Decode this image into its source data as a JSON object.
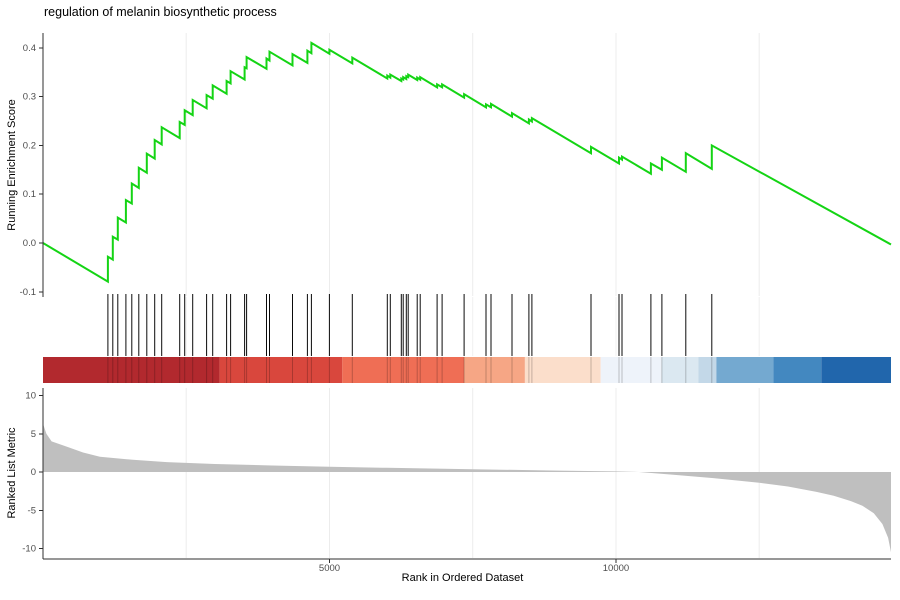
{
  "title": "regulation of melanin biosynthetic process",
  "chart_data": [
    {
      "type": "line",
      "name": "running-enrichment-score",
      "title": "regulation of melanin biosynthetic process",
      "ylabel": "Running Enrichment Score",
      "ylim": [
        -0.115,
        0.43
      ],
      "line_color": "#14d414",
      "grid": true,
      "yticks": [
        {
          "v": 0.4,
          "label": "0.4"
        },
        {
          "v": 0.3,
          "label": "0.3"
        },
        {
          "v": 0.2,
          "label": "0.2"
        },
        {
          "v": 0.1,
          "label": "0.1"
        },
        {
          "v": 0.0,
          "label": "0.0"
        },
        {
          "v": -0.1,
          "label": "-0.1"
        }
      ],
      "points": [
        [
          0,
          0
        ],
        [
          1132,
          -0.079
        ],
        [
          1132,
          -0.028
        ],
        [
          1219,
          -0.034
        ],
        [
          1219,
          0.013
        ],
        [
          1306,
          0.007
        ],
        [
          1306,
          0.052
        ],
        [
          1446,
          0.042
        ],
        [
          1446,
          0.088
        ],
        [
          1550,
          0.081
        ],
        [
          1550,
          0.122
        ],
        [
          1672,
          0.113
        ],
        [
          1672,
          0.154
        ],
        [
          1811,
          0.144
        ],
        [
          1811,
          0.183
        ],
        [
          1950,
          0.173
        ],
        [
          1950,
          0.211
        ],
        [
          2072,
          0.202
        ],
        [
          2072,
          0.237
        ],
        [
          2386,
          0.215
        ],
        [
          2386,
          0.248
        ],
        [
          2473,
          0.242
        ],
        [
          2473,
          0.272
        ],
        [
          2612,
          0.262
        ],
        [
          2612,
          0.293
        ],
        [
          2856,
          0.276
        ],
        [
          2856,
          0.303
        ],
        [
          2961,
          0.296
        ],
        [
          2961,
          0.323
        ],
        [
          3205,
          0.306
        ],
        [
          3205,
          0.332
        ],
        [
          3274,
          0.327
        ],
        [
          3274,
          0.352
        ],
        [
          3518,
          0.335
        ],
        [
          3518,
          0.36
        ],
        [
          3553,
          0.358
        ],
        [
          3553,
          0.381
        ],
        [
          3901,
          0.357
        ],
        [
          3901,
          0.378
        ],
        [
          3953,
          0.374
        ],
        [
          3953,
          0.392
        ],
        [
          4354,
          0.364
        ],
        [
          4354,
          0.387
        ],
        [
          4615,
          0.369
        ],
        [
          4615,
          0.394
        ],
        [
          4685,
          0.389
        ],
        [
          4685,
          0.41
        ],
        [
          4998,
          0.388
        ],
        [
          4998,
          0.396
        ],
        [
          5399,
          0.368
        ],
        [
          5399,
          0.38
        ],
        [
          6009,
          0.337
        ],
        [
          6009,
          0.343
        ],
        [
          6061,
          0.339
        ],
        [
          6061,
          0.345
        ],
        [
          6253,
          0.332
        ],
        [
          6253,
          0.337
        ],
        [
          6287,
          0.335
        ],
        [
          6287,
          0.34
        ],
        [
          6340,
          0.336
        ],
        [
          6340,
          0.342
        ],
        [
          6374,
          0.34
        ],
        [
          6374,
          0.345
        ],
        [
          6531,
          0.334
        ],
        [
          6531,
          0.339
        ],
        [
          6583,
          0.335
        ],
        [
          6583,
          0.34
        ],
        [
          6879,
          0.319
        ],
        [
          6879,
          0.325
        ],
        [
          6966,
          0.319
        ],
        [
          6966,
          0.325
        ],
        [
          7349,
          0.298
        ],
        [
          7349,
          0.305
        ],
        [
          7732,
          0.278
        ],
        [
          7732,
          0.284
        ],
        [
          7819,
          0.278
        ],
        [
          7819,
          0.285
        ],
        [
          8185,
          0.259
        ],
        [
          8185,
          0.266
        ],
        [
          8481,
          0.245
        ],
        [
          8481,
          0.253
        ],
        [
          8533,
          0.249
        ],
        [
          8533,
          0.256
        ],
        [
          9564,
          0.184
        ],
        [
          9564,
          0.197
        ],
        [
          10052,
          0.163
        ],
        [
          10052,
          0.175
        ],
        [
          10105,
          0.171
        ],
        [
          10105,
          0.177
        ],
        [
          10610,
          0.142
        ],
        [
          10610,
          0.163
        ],
        [
          10801,
          0.15
        ],
        [
          10801,
          0.175
        ],
        [
          11219,
          0.146
        ],
        [
          11219,
          0.184
        ],
        [
          11672,
          0.152
        ],
        [
          11672,
          0.2
        ],
        [
          14800,
          -0.003
        ]
      ],
      "hit_ranks": [
        1132,
        1219,
        1306,
        1446,
        1550,
        1672,
        1811,
        1950,
        2072,
        2386,
        2473,
        2612,
        2856,
        2961,
        3205,
        3274,
        3518,
        3553,
        3901,
        3953,
        4354,
        4615,
        4685,
        4998,
        5399,
        6009,
        6061,
        6253,
        6287,
        6340,
        6374,
        6531,
        6583,
        6879,
        6966,
        7349,
        7732,
        7819,
        8185,
        8481,
        8533,
        9564,
        10052,
        10105,
        10610,
        10801,
        11219,
        11672
      ]
    },
    {
      "type": "heatmap",
      "name": "rank-color-band",
      "segments": [
        {
          "from": 0,
          "to": 3082,
          "color": "#b2292e"
        },
        {
          "from": 3082,
          "to": 5224,
          "color": "#d9473d"
        },
        {
          "from": 5224,
          "to": 7348,
          "color": "#ef6e55"
        },
        {
          "from": 7348,
          "to": 8411,
          "color": "#f6a685"
        },
        {
          "from": 8411,
          "to": 9734,
          "color": "#fbdecb"
        },
        {
          "from": 9734,
          "to": 10796,
          "color": "#eef3fa"
        },
        {
          "from": 10796,
          "to": 11440,
          "color": "#dbe8f1"
        },
        {
          "from": 11440,
          "to": 11753,
          "color": "#c3d8e8"
        },
        {
          "from": 11753,
          "to": 12746,
          "color": "#74a9d0"
        },
        {
          "from": 12746,
          "to": 13581,
          "color": "#4388c0"
        },
        {
          "from": 13581,
          "to": 14800,
          "color": "#2166ac"
        }
      ]
    },
    {
      "type": "area",
      "name": "ranked-list-metric",
      "ylabel": "Ranked List Metric",
      "xlabel": "Rank in Ordered Dataset",
      "fill_color": "#bfbfbf",
      "xlim": [
        0,
        14800
      ],
      "ylim": [
        -11.4,
        11.0
      ],
      "yticks": [
        {
          "v": 10,
          "label": "10"
        },
        {
          "v": 5,
          "label": "5"
        },
        {
          "v": 0,
          "label": "0"
        },
        {
          "v": -5,
          "label": "-5"
        },
        {
          "v": -10,
          "label": "-10"
        }
      ],
      "xticks": [
        {
          "v": 5000,
          "label": "5000"
        },
        {
          "v": 10000,
          "label": "10000"
        }
      ],
      "gridline_ranks": [
        2500,
        5000,
        7500,
        10000,
        12500
      ],
      "points": [
        [
          0,
          6.3
        ],
        [
          60,
          5.0
        ],
        [
          150,
          4.0
        ],
        [
          418,
          3.3
        ],
        [
          700,
          2.55
        ],
        [
          993,
          2.0
        ],
        [
          1568,
          1.6
        ],
        [
          2160,
          1.3
        ],
        [
          3000,
          1.05
        ],
        [
          4000,
          0.85
        ],
        [
          5000,
          0.68
        ],
        [
          6000,
          0.55
        ],
        [
          7000,
          0.42
        ],
        [
          8000,
          0.3
        ],
        [
          9000,
          0.18
        ],
        [
          10000,
          0.08
        ],
        [
          10400,
          0.0
        ],
        [
          11000,
          -0.35
        ],
        [
          11700,
          -0.8
        ],
        [
          12500,
          -1.4
        ],
        [
          13000,
          -1.9
        ],
        [
          13500,
          -2.6
        ],
        [
          13800,
          -3.1
        ],
        [
          14100,
          -3.8
        ],
        [
          14300,
          -4.4
        ],
        [
          14500,
          -5.4
        ],
        [
          14650,
          -6.8
        ],
        [
          14750,
          -8.6
        ],
        [
          14800,
          -10.5
        ]
      ]
    }
  ]
}
